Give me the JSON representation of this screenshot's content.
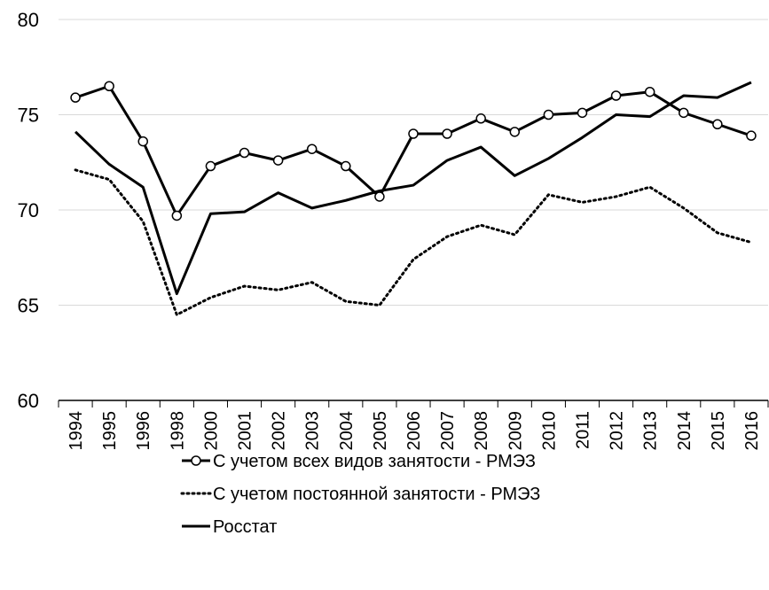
{
  "chart_data": {
    "type": "line",
    "categories": [
      "1994",
      "1995",
      "1996",
      "1998",
      "2000",
      "2001",
      "2002",
      "2003",
      "2004",
      "2005",
      "2006",
      "2007",
      "2008",
      "2009",
      "2010",
      "2011",
      "2012",
      "2013",
      "2014",
      "2015",
      "2016"
    ],
    "series": [
      {
        "name": "С учетом всех видов занятости - РМЭЗ",
        "color": "#000000",
        "style": "solid-marker",
        "values": [
          75.9,
          76.5,
          73.6,
          69.7,
          72.3,
          73.0,
          72.6,
          73.2,
          72.3,
          70.7,
          74.0,
          74.0,
          74.8,
          74.1,
          75.0,
          75.1,
          76.0,
          76.2,
          75.1,
          74.5,
          73.9
        ]
      },
      {
        "name": "С учетом постоянной занятости - РМЭЗ",
        "color": "#000000",
        "style": "dotted",
        "values": [
          72.1,
          71.6,
          69.4,
          64.5,
          65.4,
          66.0,
          65.8,
          66.2,
          65.2,
          65.0,
          67.4,
          68.6,
          69.2,
          68.7,
          70.8,
          70.4,
          70.7,
          71.2,
          70.1,
          68.8,
          68.3
        ]
      },
      {
        "name": "Росстат",
        "color": "#000000",
        "style": "solid",
        "values": [
          74.1,
          72.4,
          71.2,
          65.6,
          69.8,
          69.9,
          70.9,
          70.1,
          70.5,
          71.0,
          71.3,
          72.6,
          73.3,
          71.8,
          72.7,
          73.8,
          75.0,
          74.9,
          76.0,
          75.9,
          76.7
        ]
      }
    ],
    "ylim": [
      60,
      80
    ],
    "yticks": [
      60,
      65,
      70,
      75,
      80
    ],
    "grid": true
  }
}
